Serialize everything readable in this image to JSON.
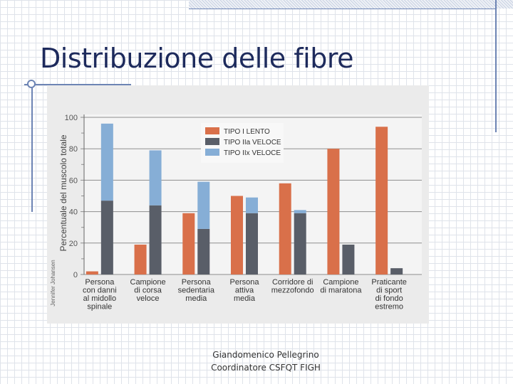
{
  "slide": {
    "title": "Distribuzione delle fibre",
    "footer_line1": "Giandomenico Pellegrino",
    "footer_line2": "Coordinatore CSFQT FIGH"
  },
  "chart_data": {
    "type": "bar",
    "ylabel": "Percentuale del muscolo totale",
    "credit": "Jennifer Johansen",
    "ylim": [
      0,
      100
    ],
    "yticks": [
      0,
      20,
      40,
      60,
      80,
      100
    ],
    "categories": [
      [
        "Persona",
        "con danni",
        "al midollo",
        "spinale"
      ],
      [
        "Campione",
        "di corsa",
        "veloce"
      ],
      [
        "Persona",
        "sedentaria",
        "media"
      ],
      [
        "Persona",
        "attiva",
        "media"
      ],
      [
        "Corridore di",
        "mezzofondo"
      ],
      [
        "Campione",
        "di maratona"
      ],
      [
        "Praticante",
        "di sport",
        "di fondo",
        "estremo"
      ]
    ],
    "series": [
      {
        "name": "TIPO I LENTO",
        "color": "#d9704a",
        "values": [
          2,
          19,
          39,
          50,
          58,
          80,
          94
        ]
      },
      {
        "name": "TIPO IIa VELOCE",
        "color": "#595e68",
        "values": [
          47,
          44,
          29,
          39,
          39,
          19,
          4
        ]
      },
      {
        "name": "TIPO IIx VELOCE",
        "color": "#86aed6",
        "values": [
          49,
          35,
          30,
          10,
          2,
          0,
          0
        ]
      }
    ],
    "stacked_series": [
      [
        1,
        2
      ]
    ],
    "grid": true,
    "legend": "top-center"
  }
}
